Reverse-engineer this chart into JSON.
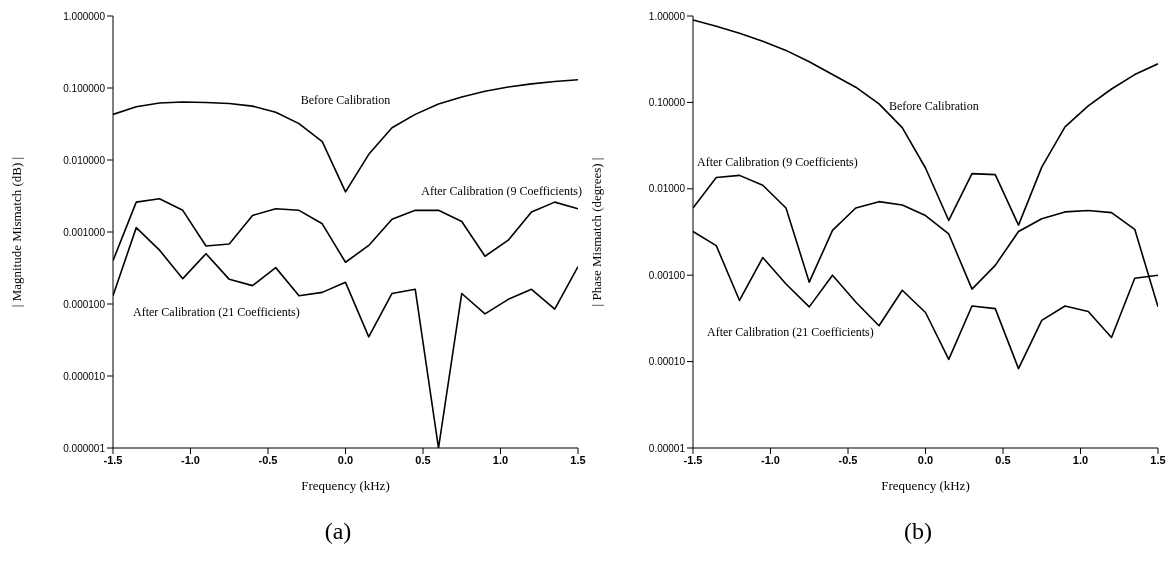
{
  "chart_data": [
    {
      "type": "line",
      "title": "(a)",
      "xlabel": "Frequency (kHz)",
      "ylabel": "| Magnitude Mismatch (dB) |",
      "log": "y",
      "grid": false,
      "legend": false,
      "marker": "none",
      "line_style": "solid",
      "x": [
        -1.5,
        -1.35,
        -1.2,
        -1.05,
        -0.9,
        -0.75,
        -0.6,
        -0.45,
        -0.3,
        -0.15,
        0,
        0.15,
        0.3,
        0.45,
        0.6,
        0.75,
        0.9,
        1.05,
        1.2,
        1.35,
        1.5
      ],
      "xlim": [
        -1.5,
        1.5
      ],
      "xticks": [
        -1.5,
        {
          "value": -1,
          "label": "-1.0"
        },
        -0.5,
        {
          "value": 0,
          "label": "0.0"
        },
        0.5,
        {
          "value": 1,
          "label": "1.0"
        },
        1.5
      ],
      "ylim": [
        1e-06,
        1
      ],
      "yticks": [
        {
          "value": 1,
          "label": "1.000000"
        },
        {
          "value": 0.1,
          "label": "0.100000"
        },
        {
          "value": 0.01,
          "label": "0.010000"
        },
        {
          "value": 0.001,
          "label": "0.001000"
        },
        {
          "value": 0.0001,
          "label": "0.000100"
        },
        {
          "value": 1e-05,
          "label": "0.000010"
        },
        {
          "value": 1e-06,
          "label": "0.000001"
        }
      ],
      "series": [
        {
          "name": "Before Calibration",
          "color": "#000000",
          "values": [
            0.043,
            0.055,
            0.062,
            0.064,
            0.063,
            0.061,
            0.056,
            0.046,
            0.032,
            0.018,
            0.0036,
            0.012,
            0.028,
            0.043,
            0.06,
            0.075,
            0.09,
            0.103,
            0.114,
            0.123,
            0.13
          ]
        },
        {
          "name": "After Calibration (9 Coefficients)",
          "color": "#000000",
          "values": [
            0.0004,
            0.0026,
            0.0029,
            0.002,
            0.00064,
            0.00068,
            0.0017,
            0.0021,
            0.002,
            0.0013,
            0.00038,
            0.00065,
            0.0015,
            0.002,
            0.002,
            0.0014,
            0.00046,
            0.00077,
            0.0019,
            0.0026,
            0.0021
          ]
        },
        {
          "name": "After Calibration (21 Coefficients)",
          "color": "#000000",
          "values": [
            0.00013,
            0.00115,
            0.00056,
            0.000225,
            0.0005,
            0.00022,
            0.00018,
            0.00032,
            0.00013,
            0.000145,
            0.0002,
            3.5e-05,
            0.00014,
            0.00016,
            1e-06,
            0.00014,
            7.3e-05,
            0.000116,
            0.00016,
            8.5e-05,
            0.00033
          ]
        }
      ]
    },
    {
      "type": "line",
      "title": "(b)",
      "xlabel": "Frequency (kHz)",
      "ylabel": "| Phase Mismatch (degrees) |",
      "log": "y",
      "grid": false,
      "legend": false,
      "marker": "none",
      "line_style": "solid",
      "x": [
        -1.5,
        -1.35,
        -1.2,
        -1.05,
        -0.9,
        -0.75,
        -0.6,
        -0.45,
        -0.3,
        -0.15,
        0,
        0.15,
        0.3,
        0.45,
        0.6,
        0.75,
        0.9,
        1.05,
        1.2,
        1.35,
        1.5
      ],
      "xlim": [
        -1.5,
        1.5
      ],
      "xticks": [
        -1.5,
        {
          "value": -1,
          "label": "-1.0"
        },
        -0.5,
        {
          "value": 0,
          "label": "0.0"
        },
        0.5,
        {
          "value": 1,
          "label": "1.0"
        },
        1.5
      ],
      "ylim": [
        1e-05,
        1
      ],
      "yticks": [
        {
          "value": 1,
          "label": "1.00000"
        },
        {
          "value": 0.1,
          "label": "0.10000"
        },
        {
          "value": 0.01,
          "label": "0.01000"
        },
        {
          "value": 0.001,
          "label": "0.00100"
        },
        {
          "value": 0.0001,
          "label": "0.00010"
        },
        {
          "value": 1e-05,
          "label": "0.00001"
        }
      ],
      "series": [
        {
          "name": "Before Calibration",
          "color": "#000000",
          "values": [
            0.9,
            0.76,
            0.63,
            0.51,
            0.4,
            0.295,
            0.21,
            0.15,
            0.096,
            0.051,
            0.0174,
            0.0043,
            0.015,
            0.0146,
            0.0038,
            0.0178,
            0.052,
            0.091,
            0.143,
            0.21,
            0.28
          ]
        },
        {
          "name": "After Calibration (9 Coefficients)",
          "color": "#000000",
          "values": [
            0.006,
            0.0135,
            0.0143,
            0.011,
            0.006,
            0.00083,
            0.0033,
            0.006,
            0.0071,
            0.0065,
            0.0049,
            0.003,
            0.00069,
            0.0013,
            0.0032,
            0.0045,
            0.0054,
            0.0056,
            0.0053,
            0.0034,
            0.00043
          ]
        },
        {
          "name": "After Calibration (21 Coefficients)",
          "color": "#000000",
          "values": [
            0.0032,
            0.0022,
            0.00051,
            0.0016,
            0.00079,
            0.00043,
            0.001,
            0.00049,
            0.00026,
            0.00067,
            0.00037,
            0.000106,
            0.00044,
            0.00041,
            8.3e-05,
            0.0003,
            0.00044,
            0.00038,
            0.00019,
            0.00092,
            0.001
          ]
        }
      ]
    }
  ]
}
